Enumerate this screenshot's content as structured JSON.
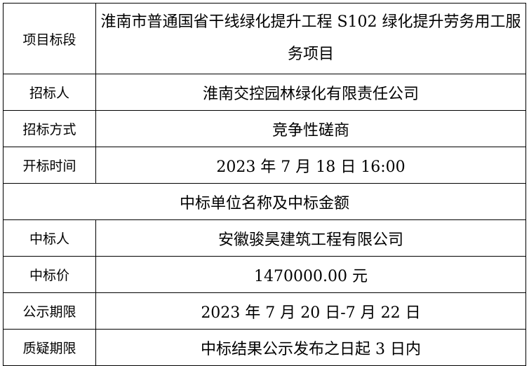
{
  "rows": [
    {
      "label": "项目标段",
      "value": "淮南市普通国省干线绿化提升工程 S102 绿化提升劳务用工服务项目"
    },
    {
      "label": "招标人",
      "value": "淮南交控园林绿化有限责任公司"
    },
    {
      "label": "招标方式",
      "value": "竞争性磋商"
    },
    {
      "label": "开标时间",
      "value": "2023 年 7 月 18 日 16:00"
    }
  ],
  "section_header": "中标单位名称及中标金额",
  "award_rows": [
    {
      "label": "中标人",
      "value": "安徽骏昊建筑工程有限公司"
    },
    {
      "label": "中标价",
      "value": "1470000.00 元"
    },
    {
      "label": "公示期限",
      "value": "2023 年 7 月 20 日-7 月 22 日"
    },
    {
      "label": "质疑期限",
      "value": "中标结果公示发布之日起 3 日内"
    }
  ]
}
